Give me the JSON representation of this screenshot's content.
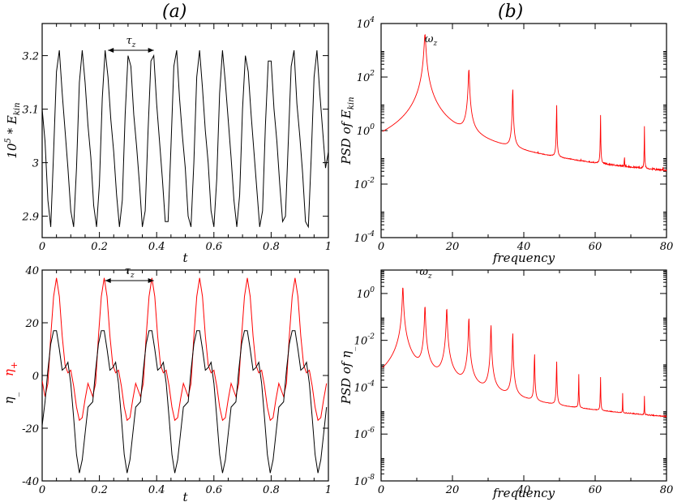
{
  "panel_labels": {
    "a": "(a)",
    "b": "(b)"
  },
  "colors": {
    "red": "#ff0000",
    "black": "#000000",
    "frame": "#000000"
  },
  "chart_data": [
    {
      "id": "ekin_time",
      "type": "line",
      "title": "",
      "xlabel": "t",
      "ylabel": "10^5 * E_kin",
      "ylabel_parts": {
        "base": "10",
        "sup": "5",
        "mid": " * E",
        "sub": "kin"
      },
      "xlim": [
        0,
        1
      ],
      "ylim": [
        2.86,
        3.26
      ],
      "xticks": [
        0,
        0.2,
        0.4,
        0.6,
        0.8,
        1
      ],
      "xtick_labels": [
        "0",
        "0.2",
        "0.4",
        "0.6",
        "0.8",
        "1"
      ],
      "yticks": [
        2.9,
        3.0,
        3.1,
        3.2
      ],
      "ytick_labels": [
        "2.9",
        "3",
        "3.1",
        "3.2"
      ],
      "period": 0.08,
      "annotation": {
        "label": "τ",
        "sub": "z",
        "x_from": 0.23,
        "x_to": 0.39,
        "y": 3.21
      },
      "series": [
        {
          "name": "E_kin",
          "color": "#000000",
          "x": [
            0,
            0.01,
            0.02,
            0.03,
            0.04,
            0.05,
            0.06,
            0.07,
            0.08,
            0.09,
            0.1,
            0.11,
            0.12,
            0.13,
            0.14,
            0.15,
            0.16,
            0.17,
            0.18,
            0.19,
            0.2,
            0.21,
            0.22,
            0.23,
            0.24,
            0.25,
            0.26,
            0.27,
            0.28,
            0.29,
            0.3,
            0.31,
            0.32,
            0.33,
            0.34,
            0.35,
            0.36,
            0.37,
            0.38,
            0.39,
            0.4,
            0.41,
            0.42,
            0.43,
            0.44,
            0.45,
            0.46,
            0.47,
            0.48,
            0.49,
            0.5,
            0.51,
            0.52,
            0.53,
            0.54,
            0.55,
            0.56,
            0.57,
            0.58,
            0.59,
            0.6,
            0.61,
            0.62,
            0.63,
            0.64,
            0.65,
            0.66,
            0.67,
            0.68,
            0.69,
            0.7,
            0.71,
            0.72,
            0.73,
            0.74,
            0.75,
            0.76,
            0.77,
            0.78,
            0.79,
            0.8,
            0.81,
            0.82,
            0.83,
            0.84,
            0.85,
            0.86,
            0.87,
            0.88,
            0.89,
            0.9,
            0.91,
            0.92,
            0.93,
            0.94,
            0.95,
            0.96,
            0.97,
            0.98,
            0.99,
            1.0
          ],
          "y": [
            3.1,
            3.04,
            2.93,
            2.88,
            3.02,
            3.17,
            3.21,
            3.13,
            3.06,
            2.99,
            2.91,
            2.88,
            2.99,
            3.15,
            3.21,
            3.15,
            3.07,
            3.01,
            2.92,
            2.88,
            2.96,
            3.12,
            3.21,
            3.16,
            3.08,
            3.02,
            2.94,
            2.88,
            2.93,
            3.09,
            3.2,
            3.18,
            3.09,
            3.03,
            2.96,
            2.88,
            2.91,
            3.06,
            3.19,
            3.2,
            3.11,
            3.04,
            2.97,
            2.89,
            2.89,
            3.03,
            3.18,
            3.21,
            3.12,
            3.05,
            2.99,
            2.9,
            2.88,
            3.0,
            3.16,
            3.21,
            3.14,
            3.06,
            3.0,
            2.91,
            2.88,
            2.97,
            3.13,
            3.21,
            3.15,
            3.08,
            3.01,
            2.93,
            2.88,
            2.94,
            3.1,
            3.2,
            3.17,
            3.09,
            3.02,
            2.95,
            2.88,
            2.91,
            3.07,
            3.19,
            3.19,
            3.1,
            3.04,
            2.96,
            2.89,
            2.9,
            3.04,
            3.18,
            3.21,
            3.11,
            3.05,
            2.98,
            2.89,
            2.88,
            3.01,
            3.16,
            3.21,
            3.13,
            3.06,
            2.99,
            3.02
          ]
        }
      ]
    },
    {
      "id": "eta_time",
      "type": "line",
      "title": "",
      "xlabel": "t",
      "ylabel_parts": [
        {
          "text": "η",
          "sub": "_",
          "color": "#000000"
        },
        {
          "text": "η",
          "sub": "+",
          "color": "#ff0000"
        }
      ],
      "xlim": [
        0,
        1
      ],
      "ylim": [
        -40,
        40
      ],
      "xticks": [
        0,
        0.2,
        0.4,
        0.6,
        0.8,
        1
      ],
      "xtick_labels": [
        "0",
        "0.2",
        "0.4",
        "0.6",
        "0.8",
        "1"
      ],
      "yticks": [
        -40,
        -20,
        0,
        20,
        40
      ],
      "ytick_labels": [
        "-40",
        "-20",
        "0",
        "20",
        "40"
      ],
      "period": 0.1667,
      "annotation": {
        "label": "τ",
        "sub": "z",
        "x_from": 0.22,
        "x_to": 0.39,
        "y": 36
      },
      "series": [
        {
          "name": "η+",
          "color": "#ff0000",
          "x": [
            0,
            0.01,
            0.02,
            0.03,
            0.04,
            0.05,
            0.06,
            0.07,
            0.08,
            0.09,
            0.1,
            0.11,
            0.12,
            0.13,
            0.14,
            0.15,
            0.16
          ],
          "y": [
            -2,
            -8,
            -3,
            15,
            30,
            37,
            30,
            15,
            4,
            1,
            2,
            -4,
            -12,
            -17,
            -16,
            -9,
            -3
          ]
        },
        {
          "name": "η-",
          "color": "#000000",
          "x": [
            0,
            0.01,
            0.02,
            0.03,
            0.04,
            0.05,
            0.06,
            0.07,
            0.08,
            0.09,
            0.1,
            0.11,
            0.12,
            0.13,
            0.14,
            0.15,
            0.16
          ],
          "y": [
            -19,
            -10,
            2,
            12,
            17,
            17,
            10,
            2,
            3,
            5,
            -3,
            -16,
            -30,
            -37,
            -32,
            -22,
            -12
          ]
        }
      ]
    },
    {
      "id": "psd_ekin",
      "type": "line",
      "yscale": "log",
      "title": "",
      "xlabel": "frequency",
      "ylabel": "PSD of E_kin",
      "ylabel_parts": {
        "pre": "PSD of E",
        "sub": "kin"
      },
      "xlim": [
        0,
        80
      ],
      "ylim_log10": [
        -4,
        4
      ],
      "xticks": [
        0,
        20,
        40,
        60,
        80
      ],
      "xtick_labels": [
        "0",
        "20",
        "40",
        "60",
        "80"
      ],
      "yticks_log10": [
        -4,
        -2,
        0,
        2,
        4
      ],
      "ytick_labels": [
        "10",
        "10",
        "10",
        "10",
        "10"
      ],
      "ytick_exponents": [
        "-4",
        "-2",
        "0",
        "2",
        "4"
      ],
      "noise_floor_log10": -2.6,
      "annotation": {
        "label": "ω",
        "sub": "z",
        "x": 14,
        "y_log10": 3.3
      },
      "peaks": [
        {
          "freq": 12.3,
          "log10": 3.6,
          "width": 1.4
        },
        {
          "freq": 24.6,
          "log10": 2.3,
          "width": 0.9
        },
        {
          "freq": 36.9,
          "log10": 1.6,
          "width": 0.5
        },
        {
          "freq": 49.2,
          "log10": 1.1,
          "width": 0.25
        },
        {
          "freq": 61.5,
          "log10": 0.7,
          "width": 0.2
        },
        {
          "freq": 73.8,
          "log10": 0.2,
          "width": 0.2
        },
        {
          "freq": 22.0,
          "log10": -1.5,
          "width": 0.15
        },
        {
          "freq": 44.0,
          "log10": -1.8,
          "width": 0.15
        },
        {
          "freq": 56.0,
          "log10": -1.7,
          "width": 0.15
        },
        {
          "freq": 68.2,
          "log10": -0.6,
          "width": 0.15
        },
        {
          "freq": 79.0,
          "log10": -1.6,
          "width": 0.15
        }
      ]
    },
    {
      "id": "psd_eta",
      "type": "line",
      "yscale": "log",
      "title": "",
      "xlabel": "frequency",
      "ylabel": "PSD of η_",
      "ylabel_parts": {
        "pre": "PSD of η",
        "sub": "_"
      },
      "xlim": [
        0,
        80
      ],
      "ylim_log10": [
        -8,
        1
      ],
      "xticks": [
        0,
        20,
        40,
        60,
        80
      ],
      "xtick_labels": [
        "0",
        "20",
        "40",
        "60",
        "80"
      ],
      "yticks_log10": [
        -8,
        -6,
        -4,
        -2,
        0
      ],
      "ytick_labels": [
        "10",
        "10",
        "10",
        "10",
        "10"
      ],
      "ytick_exponents": [
        "-8",
        "-6",
        "-4",
        "-2",
        "0"
      ],
      "noise_floor_log10": -6.6,
      "annotation": {
        "label": "ω",
        "sub": "z",
        "x": 12.5,
        "y_log10": 0.8
      },
      "peaks": [
        {
          "freq": 6.1,
          "log10": 0.3,
          "width": 0.8
        },
        {
          "freq": 12.3,
          "log10": -0.5,
          "width": 0.7
        },
        {
          "freq": 18.4,
          "log10": -0.6,
          "width": 0.7
        },
        {
          "freq": 24.6,
          "log10": -1.0,
          "width": 0.6
        },
        {
          "freq": 30.8,
          "log10": -1.3,
          "width": 0.5
        },
        {
          "freq": 36.9,
          "log10": -1.6,
          "width": 0.4
        },
        {
          "freq": 43.0,
          "log10": -2.4,
          "width": 0.3
        },
        {
          "freq": 49.2,
          "log10": -2.8,
          "width": 0.3
        },
        {
          "freq": 55.4,
          "log10": -3.4,
          "width": 0.25
        },
        {
          "freq": 61.5,
          "log10": -3.5,
          "width": 0.25
        },
        {
          "freq": 67.7,
          "log10": -4.3,
          "width": 0.2
        },
        {
          "freq": 73.8,
          "log10": -4.4,
          "width": 0.2
        }
      ]
    }
  ]
}
